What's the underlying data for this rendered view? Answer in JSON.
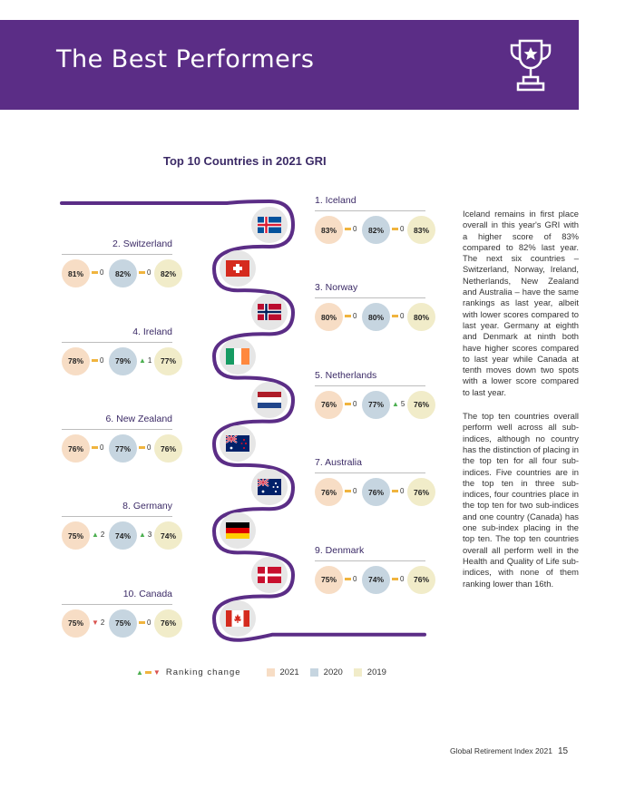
{
  "header": {
    "title": "The Best Performers",
    "trophy_icon": "trophy-icon",
    "banner_color": "#5b2d86"
  },
  "chart": {
    "title": "Top 10 Countries in 2021 GRI",
    "countries": [
      {
        "label": "1. Iceland",
        "flag": "iceland-flag",
        "s2021": "83%",
        "c1": "0",
        "s2020": "82%",
        "c2": "0",
        "s2019": "83%"
      },
      {
        "label": "2. Switzerland",
        "flag": "switzerland-flag",
        "s2021": "81%",
        "c1": "0",
        "s2020": "82%",
        "c2": "0",
        "s2019": "82%"
      },
      {
        "label": "3. Norway",
        "flag": "norway-flag",
        "s2021": "80%",
        "c1": "0",
        "s2020": "80%",
        "c2": "0",
        "s2019": "80%"
      },
      {
        "label": "4. Ireland",
        "flag": "ireland-flag",
        "s2021": "78%",
        "c1": "0",
        "s2020": "79%",
        "c2": "1",
        "s2019": "77%"
      },
      {
        "label": "5. Netherlands",
        "flag": "netherlands-flag",
        "s2021": "76%",
        "c1": "0",
        "s2020": "77%",
        "c2": "5",
        "s2019": "76%"
      },
      {
        "label": "6. New Zealand",
        "flag": "new-zealand-flag",
        "s2021": "76%",
        "c1": "0",
        "s2020": "77%",
        "c2": "0",
        "s2019": "76%"
      },
      {
        "label": "7. Australia",
        "flag": "australia-flag",
        "s2021": "76%",
        "c1": "0",
        "s2020": "76%",
        "c2": "0",
        "s2019": "76%"
      },
      {
        "label": "8. Germany",
        "flag": "germany-flag",
        "s2021": "75%",
        "c1": "2",
        "s2020": "74%",
        "c2": "3",
        "s2019": "74%"
      },
      {
        "label": "9. Denmark",
        "flag": "denmark-flag",
        "s2021": "75%",
        "c1": "0",
        "s2020": "74%",
        "c2": "0",
        "s2019": "76%"
      },
      {
        "label": "10. Canada",
        "flag": "canada-flag",
        "s2021": "75%",
        "c1": "2",
        "s2020": "75%",
        "c2": "0",
        "s2019": "76%"
      }
    ],
    "change_directions": [
      [
        "same",
        "same"
      ],
      [
        "same",
        "same"
      ],
      [
        "same",
        "same"
      ],
      [
        "same",
        "up"
      ],
      [
        "same",
        "up"
      ],
      [
        "same",
        "same"
      ],
      [
        "same",
        "same"
      ],
      [
        "up",
        "up"
      ],
      [
        "same",
        "same"
      ],
      [
        "down",
        "same"
      ]
    ],
    "legend": {
      "change_label": "Ranking change",
      "y2021": "2021",
      "y2020": "2020",
      "y2019": "2019"
    },
    "colors": {
      "snake": "#5b2d86",
      "s2021": "#f7ddc5",
      "s2020": "#c6d5e0",
      "s2019": "#f1ecc9",
      "up": "#4caf50",
      "same": "#f0b43e",
      "down": "#d9534f"
    }
  },
  "body": {
    "para1": "Iceland remains in first place overall in this year's GRI with a higher score of 83% compared to 82% last year. The next six countries – Switzerland, Norway, Ireland, Netherlands, New Zealand and Australia – have the same rankings as last year, albeit with lower scores compared to last year. Germany at eighth and Denmark at ninth both have higher scores compared to last year while Canada at tenth moves down two spots with a lower score compared to last year.",
    "para2": "The top ten countries overall perform well across all sub-indices, although no country has the distinction of placing in the top ten for all four sub-indices. Five countries are in the top ten in three sub-indices, four countries place in the top ten for two sub-indices and one country (Canada) has one sub-index placing in the top ten. The top ten countries overall all perform well in the Health and Quality of Life sub-indices, with none of them ranking lower than 16th."
  },
  "footer": {
    "doc": "Global Retirement Index 2021",
    "page": "15"
  }
}
